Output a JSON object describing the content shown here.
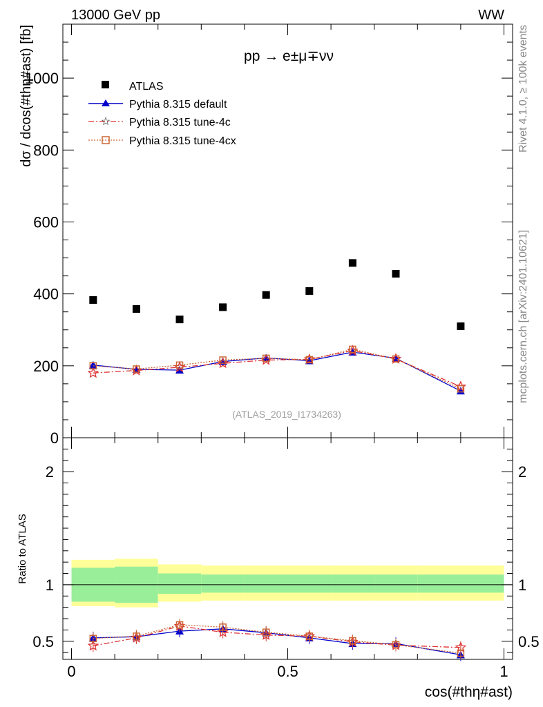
{
  "chart_data": [
    {
      "type": "scatter",
      "title": "pp → e±μ∓νν",
      "top_left_label": "13000 GeV pp",
      "top_right_label": "WW",
      "ylabel": "dσ / dcos(#thη#ast) [fb]",
      "xlabel": "cos(#thη#ast)",
      "ylim": [
        0,
        1150
      ],
      "xlim": [
        -0.02,
        1.02
      ],
      "yticks": [
        0,
        200,
        400,
        600,
        800,
        1000
      ],
      "ytick_labels": [
        "0",
        "200",
        "400",
        "600",
        "800",
        "1000"
      ],
      "reference_label": "(ATLAS_2019_I1734263)",
      "side_label_1": "Rivet 4.1.0, ≥ 100k events",
      "side_label_2": "mcplots.cern.ch [arXiv:2401.10621]",
      "bins": [
        {
          "lo": 0.0,
          "hi": 0.1
        },
        {
          "lo": 0.1,
          "hi": 0.2
        },
        {
          "lo": 0.2,
          "hi": 0.3
        },
        {
          "lo": 0.3,
          "hi": 0.4
        },
        {
          "lo": 0.4,
          "hi": 0.5
        },
        {
          "lo": 0.5,
          "hi": 0.6
        },
        {
          "lo": 0.6,
          "hi": 0.7
        },
        {
          "lo": 0.7,
          "hi": 0.8
        },
        {
          "lo": 0.8,
          "hi": 1.0
        }
      ],
      "x": [
        0.05,
        0.15,
        0.25,
        0.35,
        0.45,
        0.55,
        0.65,
        0.75,
        0.9
      ],
      "series": [
        {
          "name": "ATLAS",
          "color": "#000000",
          "marker": "square",
          "values": [
            383,
            358,
            329,
            363,
            397,
            408,
            486,
            456,
            310
          ]
        },
        {
          "name": "Pythia 8.315 default",
          "color": "#0000cc",
          "marker": "triangle",
          "values": [
            202,
            190,
            188,
            212,
            222,
            214,
            238,
            221,
            130
          ]
        },
        {
          "name": "Pythia 8.315 tune-4c",
          "color": "#dd3333",
          "marker": "star",
          "values": [
            180,
            187,
            196,
            207,
            216,
            218,
            242,
            219,
            142
          ]
        },
        {
          "name": "Pythia 8.315 tune-4cx",
          "color": "#cc6633",
          "marker": "open-square",
          "values": [
            200,
            191,
            202,
            216,
            221,
            217,
            246,
            219,
            136
          ]
        }
      ]
    },
    {
      "type": "line",
      "ylabel": "Ratio to ATLAS",
      "xlabel": "cos(#thη#ast)",
      "ylim": [
        0.34,
        2.3
      ],
      "xlim": [
        -0.02,
        1.02
      ],
      "yticks": [
        0.5,
        1,
        2
      ],
      "ytick_labels": [
        "0.5",
        "1",
        "2"
      ],
      "xticks": [
        0,
        0.5,
        1
      ],
      "xtick_labels": [
        "0",
        "0.5",
        "1"
      ],
      "reference_line": 1,
      "band_inner": [
        [
          0.85,
          1.15
        ],
        [
          0.84,
          1.16
        ],
        [
          0.92,
          1.1
        ],
        [
          0.93,
          1.09
        ],
        [
          0.93,
          1.09
        ],
        [
          0.93,
          1.09
        ],
        [
          0.93,
          1.09
        ],
        [
          0.93,
          1.09
        ],
        [
          0.93,
          1.09
        ]
      ],
      "band_outer": [
        [
          0.81,
          1.22
        ],
        [
          0.8,
          1.23
        ],
        [
          0.85,
          1.18
        ],
        [
          0.86,
          1.17
        ],
        [
          0.86,
          1.17
        ],
        [
          0.86,
          1.17
        ],
        [
          0.86,
          1.17
        ],
        [
          0.86,
          1.17
        ],
        [
          0.86,
          1.17
        ]
      ],
      "band_inner_color": "#99ee99",
      "band_outer_color": "#ffff99",
      "series": [
        {
          "name": "Pythia 8.315 default",
          "color": "#0000cc",
          "values": [
            0.53,
            0.54,
            0.59,
            0.61,
            0.575,
            0.53,
            0.48,
            0.48,
            0.38
          ]
        },
        {
          "name": "Pythia 8.315 tune-4c",
          "color": "#dd3333",
          "values": [
            0.46,
            0.53,
            0.635,
            0.58,
            0.555,
            0.545,
            0.495,
            0.465,
            0.445
          ]
        },
        {
          "name": "Pythia 8.315 tune-4cx",
          "color": "#cc6633",
          "values": [
            0.525,
            0.545,
            0.645,
            0.625,
            0.58,
            0.545,
            0.505,
            0.47,
            0.395
          ]
        }
      ]
    }
  ]
}
